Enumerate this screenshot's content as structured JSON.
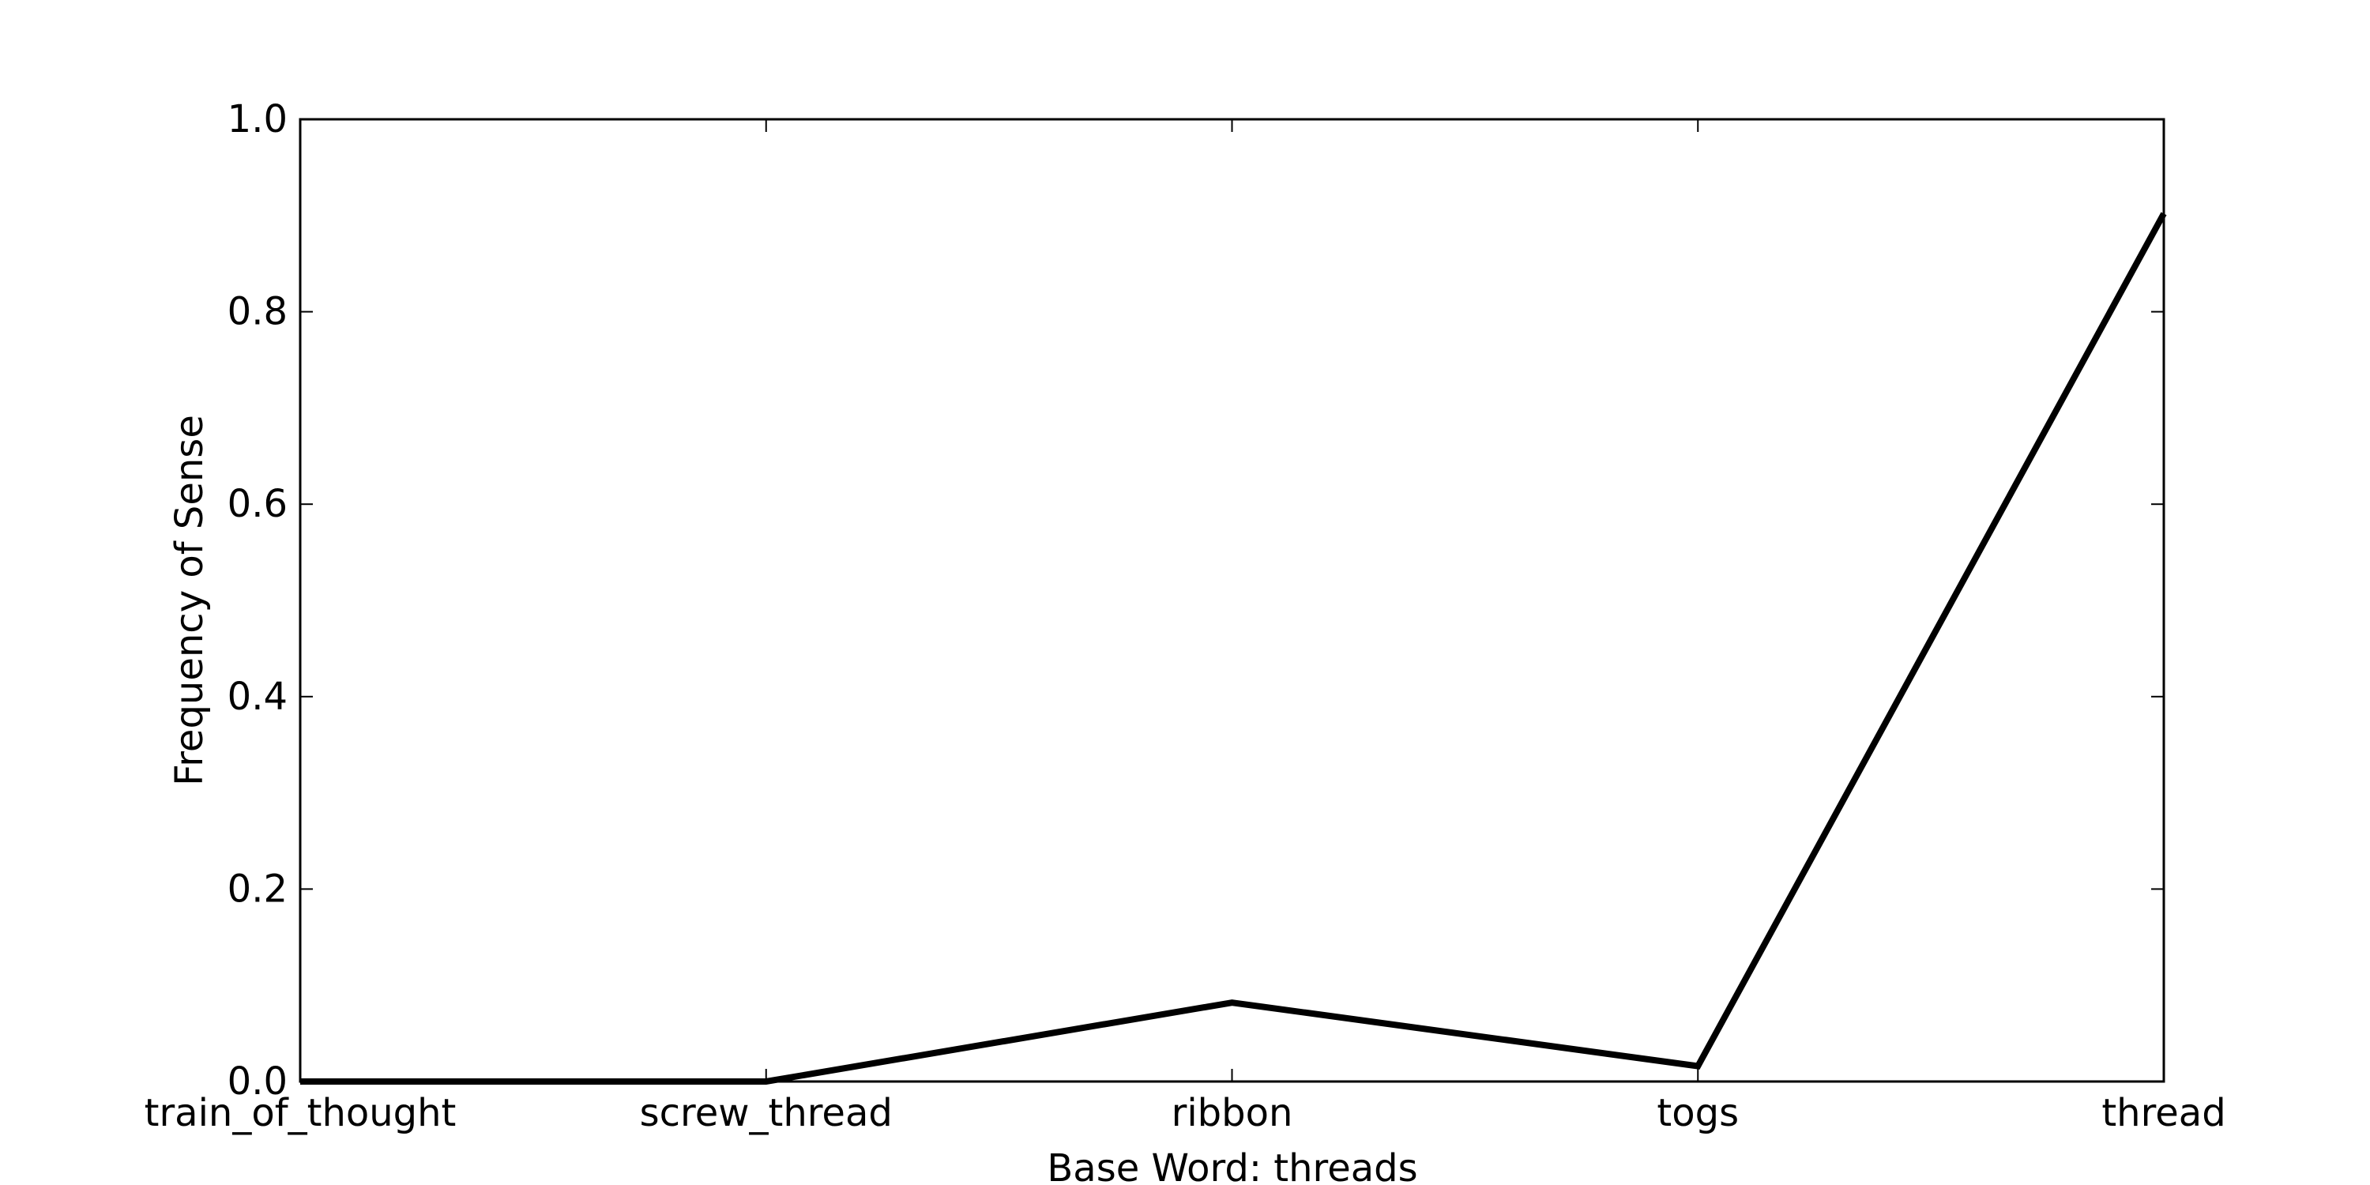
{
  "chart_data": {
    "type": "line",
    "title": "",
    "xlabel": "Base Word: threads",
    "ylabel": "Frequency of Sense",
    "categories": [
      "train_of_thought",
      "screw_thread",
      "ribbon",
      "togs",
      "thread"
    ],
    "series": [
      {
        "values": [
          0.0,
          0.0,
          0.082,
          0.016,
          0.902
        ]
      }
    ],
    "ylim": [
      0.0,
      1.0
    ],
    "yticks": [
      "0.0",
      "0.2",
      "0.4",
      "0.6",
      "0.8",
      "1.0"
    ],
    "grid": false,
    "line_color": "#000000"
  }
}
